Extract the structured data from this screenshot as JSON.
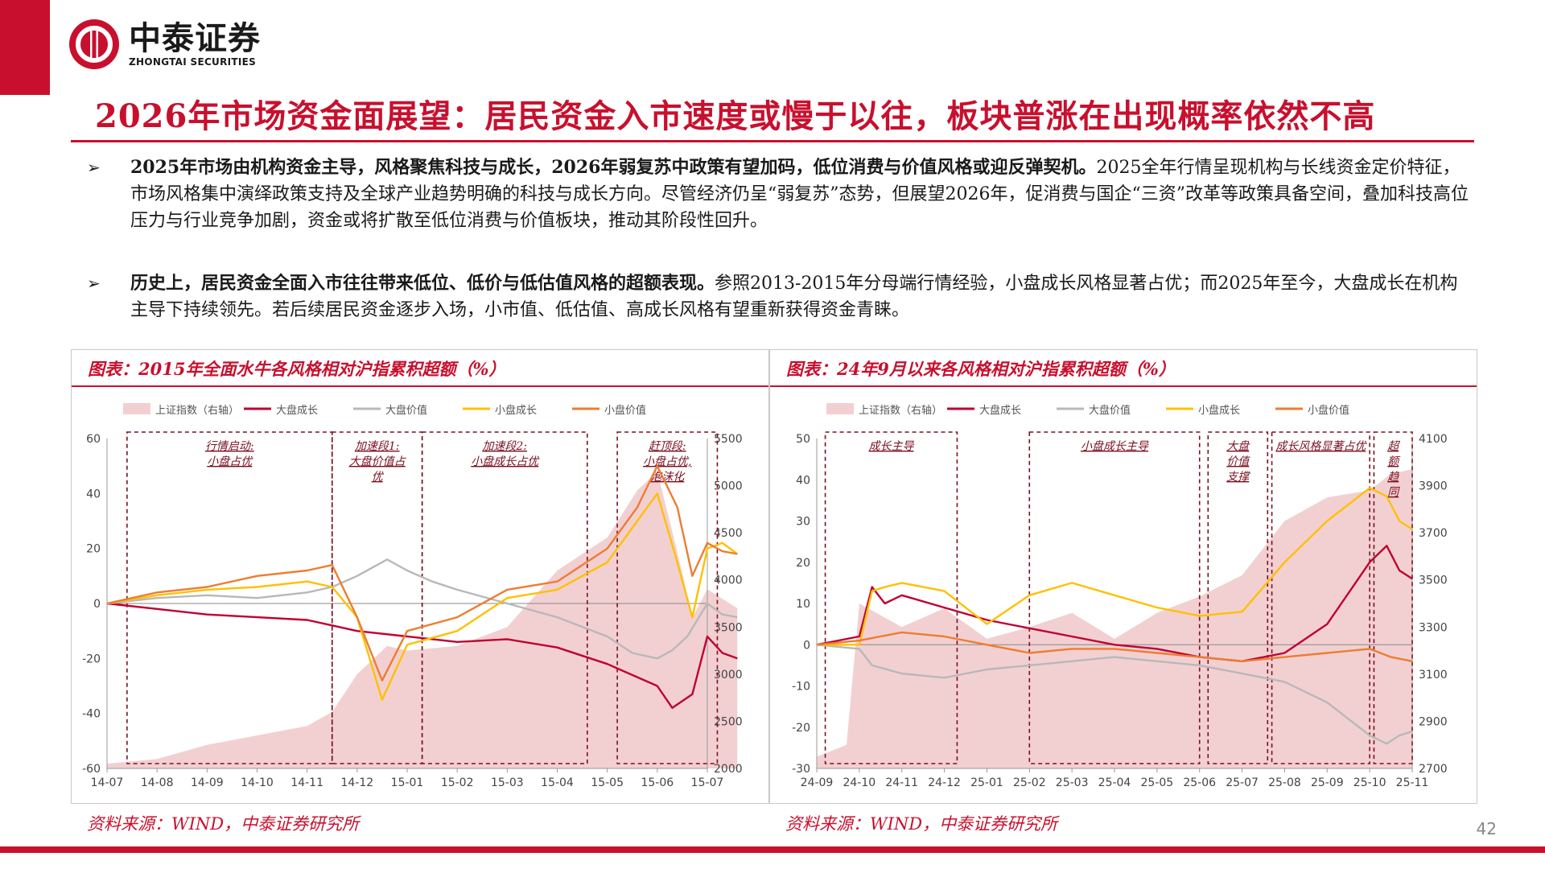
{
  "brand": {
    "name_cn": "中泰证券",
    "name_en": "ZHONGTAI SECURITIES",
    "color": "#c8102e"
  },
  "title": "2026年市场资金面展望：居民资金入市速度或慢于以往，板块普涨在出现概率依然不高",
  "bullets": [
    {
      "bold": "2025年市场由机构资金主导，风格聚焦科技与成长，2026年弱复苏中政策有望加码，低位消费与价值风格或迎反弹契机。",
      "text": "2025全年行情呈现机构与长线资金定价特征，市场风格集中演绎政策支持及全球产业趋势明确的科技与成长方向。尽管经济仍呈“弱复苏”态势，但展望2026年，促消费与国企“三资”改革等政策具备空间，叠加科技高位压力与行业竞争加剧，资金或将扩散至低位消费与价值板块，推动其阶段性回升。"
    },
    {
      "bold": "历史上，居民资金全面入市往往带来低位、低价与低估值风格的超额表现。",
      "text": "参照2013-2015年分母端行情经验，小盘成长风格显著占优；而2025年至今，大盘成长在机构主导下持续领先。若后续居民资金逐步入场，小市值、低估值、高成长风格有望重新获得资金青睐。"
    }
  ],
  "chart_data": [
    {
      "type": "line",
      "title": "图表：2015年全面水牛各风格相对沪指累积超额（%）",
      "x_ticks": [
        "14-07",
        "14-08",
        "14-09",
        "14-10",
        "14-11",
        "14-12",
        "15-01",
        "15-02",
        "15-03",
        "15-04",
        "15-05",
        "15-06",
        "15-07"
      ],
      "ylim": [
        -60,
        60
      ],
      "y_ticks": [
        -60,
        -40,
        -20,
        0,
        20,
        40,
        60
      ],
      "y2lim": [
        2000,
        5500
      ],
      "y2_ticks": [
        2000,
        2500,
        3000,
        3500,
        4000,
        4500,
        5000,
        5500
      ],
      "legend": [
        "上证指数（右轴）",
        "大盘成长",
        "大盘价值",
        "小盘成长",
        "小盘价值"
      ],
      "legend_position": "top",
      "area": {
        "name": "上证指数（右轴）",
        "color": "#f2d0d2",
        "points": [
          [
            0,
            2050
          ],
          [
            1,
            2100
          ],
          [
            2,
            2250
          ],
          [
            3,
            2350
          ],
          [
            4,
            2450
          ],
          [
            4.5,
            2600
          ],
          [
            5,
            3000
          ],
          [
            5.6,
            3300
          ],
          [
            6,
            3250
          ],
          [
            7,
            3300
          ],
          [
            8,
            3500
          ],
          [
            9,
            4100
          ],
          [
            10,
            4450
          ],
          [
            10.6,
            4950
          ],
          [
            11,
            5150
          ],
          [
            11.4,
            4300
          ],
          [
            11.7,
            3600
          ],
          [
            12,
            3900
          ],
          [
            12.3,
            3800
          ],
          [
            12.6,
            3700
          ]
        ]
      },
      "series": [
        {
          "name": "大盘成长",
          "color": "#c00030",
          "points": [
            [
              0,
              0
            ],
            [
              1,
              -2
            ],
            [
              2,
              -4
            ],
            [
              3,
              -5
            ],
            [
              4,
              -6
            ],
            [
              4.5,
              -8
            ],
            [
              5,
              -10
            ],
            [
              6,
              -12
            ],
            [
              7,
              -14
            ],
            [
              8,
              -13
            ],
            [
              9,
              -16
            ],
            [
              10,
              -22
            ],
            [
              11,
              -30
            ],
            [
              11.3,
              -38
            ],
            [
              11.7,
              -33
            ],
            [
              12,
              -12
            ],
            [
              12.3,
              -18
            ],
            [
              12.6,
              -20
            ]
          ]
        },
        {
          "name": "大盘价值",
          "color": "#b8b8b8",
          "points": [
            [
              0,
              0
            ],
            [
              1,
              2
            ],
            [
              2,
              3
            ],
            [
              3,
              2
            ],
            [
              4,
              4
            ],
            [
              4.5,
              6
            ],
            [
              5,
              10
            ],
            [
              5.6,
              16
            ],
            [
              6,
              12
            ],
            [
              6.5,
              8
            ],
            [
              7,
              5
            ],
            [
              8,
              0
            ],
            [
              9,
              -5
            ],
            [
              10,
              -12
            ],
            [
              10.5,
              -18
            ],
            [
              11,
              -20
            ],
            [
              11.3,
              -17
            ],
            [
              11.6,
              -12
            ],
            [
              12,
              0
            ],
            [
              12.3,
              -4
            ],
            [
              12.6,
              -5
            ]
          ]
        },
        {
          "name": "小盘成长",
          "color": "#ffc000",
          "points": [
            [
              0,
              0
            ],
            [
              1,
              3
            ],
            [
              2,
              5
            ],
            [
              3,
              6
            ],
            [
              4,
              8
            ],
            [
              4.5,
              6
            ],
            [
              5,
              -5
            ],
            [
              5.5,
              -35
            ],
            [
              6,
              -15
            ],
            [
              7,
              -10
            ],
            [
              8,
              2
            ],
            [
              9,
              5
            ],
            [
              10,
              15
            ],
            [
              10.6,
              30
            ],
            [
              11,
              40
            ],
            [
              11.4,
              15
            ],
            [
              11.7,
              -5
            ],
            [
              12,
              20
            ],
            [
              12.3,
              22
            ],
            [
              12.6,
              18
            ]
          ]
        },
        {
          "name": "小盘价值",
          "color": "#ed7d31",
          "points": [
            [
              0,
              0
            ],
            [
              1,
              4
            ],
            [
              2,
              6
            ],
            [
              3,
              10
            ],
            [
              4,
              12
            ],
            [
              4.5,
              14
            ],
            [
              5,
              -5
            ],
            [
              5.5,
              -28
            ],
            [
              6,
              -10
            ],
            [
              7,
              -5
            ],
            [
              8,
              5
            ],
            [
              9,
              8
            ],
            [
              10,
              20
            ],
            [
              10.6,
              35
            ],
            [
              11,
              50
            ],
            [
              11.4,
              35
            ],
            [
              11.7,
              10
            ],
            [
              12,
              22
            ],
            [
              12.3,
              19
            ],
            [
              12.6,
              18
            ]
          ]
        }
      ],
      "annotations": [
        {
          "text": [
            "行情启动:",
            "小盘占优"
          ],
          "x_range": [
            0.4,
            4.5
          ]
        },
        {
          "text": [
            "加速段1:",
            "大盘价值占",
            "优"
          ],
          "x_range": [
            4.5,
            6.3
          ]
        },
        {
          "text": [
            "加速段2:",
            "小盘成长占优"
          ],
          "x_range": [
            6.3,
            9.6
          ]
        },
        {
          "text": [
            "赶顶段:",
            "小盘占优,",
            "泡沫化"
          ],
          "x_range": [
            10.2,
            12.2
          ]
        }
      ]
    },
    {
      "type": "line",
      "title": "图表：24年9月以来各风格相对沪指累积超额（%）",
      "x_ticks": [
        "24-09",
        "24-10",
        "24-11",
        "24-12",
        "25-01",
        "25-02",
        "25-03",
        "25-04",
        "25-05",
        "25-06",
        "25-07",
        "25-08",
        "25-09",
        "25-10",
        "25-11"
      ],
      "ylim": [
        -30,
        50
      ],
      "y_ticks": [
        -30,
        -20,
        -10,
        0,
        10,
        20,
        30,
        40,
        50
      ],
      "y2lim": [
        2700,
        4100
      ],
      "y2_ticks": [
        2700,
        2900,
        3100,
        3300,
        3500,
        3700,
        3900,
        4100
      ],
      "legend": [
        "上证指数（右轴）",
        "大盘成长",
        "大盘价值",
        "小盘成长",
        "小盘价值"
      ],
      "legend_position": "top",
      "area": {
        "name": "上证指数（右轴）",
        "color": "#f2d0d2",
        "points": [
          [
            0,
            2750
          ],
          [
            0.7,
            2800
          ],
          [
            1,
            3400
          ],
          [
            1.5,
            3350
          ],
          [
            2,
            3300
          ],
          [
            3,
            3380
          ],
          [
            4,
            3250
          ],
          [
            5,
            3300
          ],
          [
            6,
            3360
          ],
          [
            7,
            3250
          ],
          [
            8,
            3360
          ],
          [
            9,
            3430
          ],
          [
            10,
            3520
          ],
          [
            11,
            3750
          ],
          [
            12,
            3850
          ],
          [
            13,
            3880
          ],
          [
            13.5,
            3950
          ],
          [
            14,
            3970
          ]
        ]
      },
      "series": [
        {
          "name": "大盘成长",
          "color": "#c00030",
          "points": [
            [
              0,
              0
            ],
            [
              1,
              2
            ],
            [
              1.3,
              14
            ],
            [
              1.6,
              10
            ],
            [
              2,
              12
            ],
            [
              3,
              9
            ],
            [
              4,
              6
            ],
            [
              5,
              4
            ],
            [
              6,
              2
            ],
            [
              7,
              0
            ],
            [
              8,
              -1
            ],
            [
              9,
              -3
            ],
            [
              10,
              -4
            ],
            [
              11,
              -2
            ],
            [
              12,
              5
            ],
            [
              13,
              20
            ],
            [
              13.4,
              24
            ],
            [
              13.7,
              18
            ],
            [
              14,
              16
            ]
          ]
        },
        {
          "name": "大盘价值",
          "color": "#b8b8b8",
          "points": [
            [
              0,
              0
            ],
            [
              1,
              -1
            ],
            [
              1.3,
              -5
            ],
            [
              2,
              -7
            ],
            [
              3,
              -8
            ],
            [
              4,
              -6
            ],
            [
              5,
              -5
            ],
            [
              6,
              -4
            ],
            [
              7,
              -3
            ],
            [
              8,
              -4
            ],
            [
              9,
              -5
            ],
            [
              10,
              -7
            ],
            [
              11,
              -9
            ],
            [
              12,
              -14
            ],
            [
              13,
              -22
            ],
            [
              13.4,
              -24
            ],
            [
              13.7,
              -22
            ],
            [
              14,
              -21
            ]
          ]
        },
        {
          "name": "小盘成长",
          "color": "#ffc000",
          "points": [
            [
              0,
              0
            ],
            [
              1,
              0
            ],
            [
              1.3,
              13
            ],
            [
              1.6,
              14
            ],
            [
              2,
              15
            ],
            [
              3,
              13
            ],
            [
              4,
              5
            ],
            [
              5,
              12
            ],
            [
              6,
              15
            ],
            [
              7,
              12
            ],
            [
              8,
              9
            ],
            [
              9,
              7
            ],
            [
              10,
              8
            ],
            [
              11,
              20
            ],
            [
              12,
              30
            ],
            [
              13,
              38
            ],
            [
              13.4,
              36
            ],
            [
              13.7,
              30
            ],
            [
              14,
              28
            ]
          ]
        },
        {
          "name": "小盘价值",
          "color": "#ed7d31",
          "points": [
            [
              0,
              0
            ],
            [
              1,
              1
            ],
            [
              2,
              3
            ],
            [
              3,
              2
            ],
            [
              4,
              0
            ],
            [
              5,
              -2
            ],
            [
              6,
              -1
            ],
            [
              7,
              -1
            ],
            [
              8,
              -2
            ],
            [
              9,
              -3
            ],
            [
              10,
              -4
            ],
            [
              11,
              -3
            ],
            [
              12,
              -2
            ],
            [
              13,
              -1
            ],
            [
              13.5,
              -3
            ],
            [
              14,
              -4
            ]
          ]
        }
      ],
      "annotations": [
        {
          "text": [
            "成长主导"
          ],
          "x_range": [
            0.2,
            3.3
          ]
        },
        {
          "text": [
            "小盘成长主导"
          ],
          "x_range": [
            5.0,
            9.0
          ]
        },
        {
          "text": [
            "大盘",
            "价值",
            "支撑"
          ],
          "x_range": [
            9.2,
            10.6
          ]
        },
        {
          "text": [
            "成长风格显著占优"
          ],
          "x_range": [
            10.7,
            13.0
          ]
        },
        {
          "text": [
            "超",
            "额",
            "趋",
            "同"
          ],
          "x_range": [
            13.1,
            14.0
          ]
        }
      ]
    }
  ],
  "sources": [
    "资料来源：WIND，中泰证券研究所",
    "资料来源：WIND，中泰证券研究所"
  ],
  "page_number": "42"
}
